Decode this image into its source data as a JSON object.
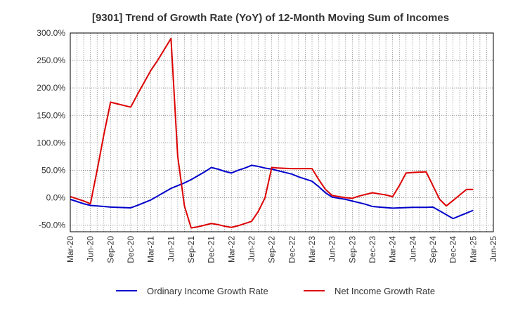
{
  "chart_data": {
    "type": "line",
    "title": "[9301]  Trend of Growth Rate (YoY) of 12-Month Moving Sum of Incomes",
    "xlabel": "",
    "ylabel": "",
    "ylim": [
      -62,
      300
    ],
    "y_ticks": [
      300,
      250,
      200,
      150,
      100,
      50,
      0,
      -50
    ],
    "y_tick_labels": [
      "300.0%",
      "250.0%",
      "200.0%",
      "150.0%",
      "100.0%",
      "50.0%",
      "0.0%",
      "-50.0%"
    ],
    "x_tick_labels": [
      "Mar-20",
      "Jun-20",
      "Sep-20",
      "Dec-20",
      "Mar-21",
      "Jun-21",
      "Sep-21",
      "Dec-21",
      "Mar-22",
      "Jun-22",
      "Sep-22",
      "Dec-22",
      "Mar-23",
      "Jun-23",
      "Sep-23",
      "Dec-23",
      "Mar-24",
      "Jun-24",
      "Sep-24",
      "Dec-24",
      "Mar-25",
      "Jun-25"
    ],
    "grid": true,
    "legend_position": "bottom",
    "x": [
      "2020-03",
      "2020-04",
      "2020-05",
      "2020-06",
      "2020-07",
      "2020-08",
      "2020-09",
      "2020-10",
      "2020-11",
      "2020-12",
      "2021-01",
      "2021-02",
      "2021-03",
      "2021-04",
      "2021-05",
      "2021-06",
      "2021-07",
      "2021-08",
      "2021-09",
      "2021-10",
      "2021-11",
      "2021-12",
      "2022-01",
      "2022-02",
      "2022-03",
      "2022-04",
      "2022-05",
      "2022-06",
      "2022-07",
      "2022-08",
      "2022-09",
      "2022-10",
      "2022-11",
      "2022-12",
      "2023-01",
      "2023-02",
      "2023-03",
      "2023-04",
      "2023-05",
      "2023-06",
      "2023-07",
      "2023-08",
      "2023-09",
      "2023-10",
      "2023-11",
      "2023-12",
      "2024-01",
      "2024-02",
      "2024-03",
      "2024-04",
      "2024-05",
      "2024-06",
      "2024-07",
      "2024-08",
      "2024-09",
      "2024-10",
      "2024-11",
      "2024-12",
      "2025-01",
      "2025-02",
      "2025-03"
    ],
    "series": [
      {
        "name": "Ordinary Income Growth Rate",
        "color": "#0000cc",
        "values": [
          -3,
          -7,
          -11,
          -14,
          -15,
          -16,
          -17,
          -17.5,
          -18,
          -18.5,
          -14,
          -9,
          -4,
          3,
          10,
          17,
          22,
          27,
          33,
          40,
          47,
          55,
          52,
          48,
          45,
          50,
          54,
          59,
          57,
          54,
          52,
          49,
          46,
          43,
          38,
          34,
          30,
          20,
          9,
          1,
          -1,
          -3,
          -6,
          -9,
          -12,
          -16,
          -17,
          -18,
          -19,
          -18.5,
          -18,
          -17.5,
          -17.5,
          -17.5,
          -17,
          -24,
          -31,
          -38,
          -33,
          -28,
          -23
        ]
      },
      {
        "name": "Net Income Growth Rate",
        "color": "#dd0000",
        "values": [
          2,
          -2,
          -6,
          -11,
          50,
          115,
          174,
          171,
          168,
          165,
          188,
          210,
          232,
          250,
          270,
          290,
          75,
          -15,
          -55,
          -53,
          -50,
          -47,
          -49,
          -52,
          -54,
          -51,
          -47,
          -43,
          -25,
          0,
          55,
          54,
          53.5,
          53,
          53,
          53,
          53,
          33,
          15,
          4,
          2,
          0,
          -1,
          3,
          6,
          9,
          7,
          5,
          2,
          22,
          45,
          46,
          46.5,
          47,
          22,
          -3,
          -15,
          -5,
          5,
          15,
          15
        ]
      }
    ]
  }
}
